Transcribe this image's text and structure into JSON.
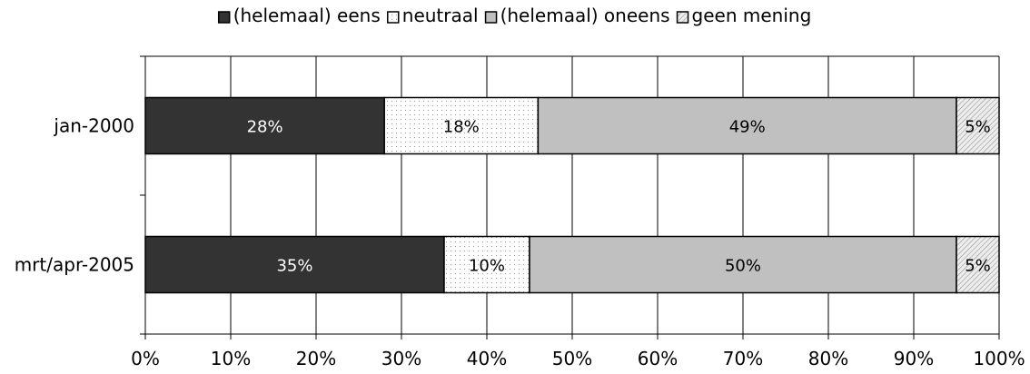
{
  "chart_data": {
    "type": "bar",
    "orientation": "horizontal",
    "stacked": "percent",
    "categories": [
      "jan-2000",
      "mrt/apr-2005"
    ],
    "series": [
      {
        "name": "(helemaal) eens",
        "values": [
          28,
          35
        ],
        "color": "#333333",
        "pattern": "solid"
      },
      {
        "name": "neutraal",
        "values": [
          18,
          10
        ],
        "color": "#ffffff",
        "pattern": "dotted"
      },
      {
        "name": "(helemaal) oneens",
        "values": [
          49,
          50
        ],
        "color": "#c0c0c0",
        "pattern": "solid"
      },
      {
        "name": "geen mening",
        "values": [
          5,
          5
        ],
        "color": "#e6e6e6",
        "pattern": "hatched"
      }
    ],
    "value_labels": [
      [
        "28%",
        "18%",
        "49%",
        "5%"
      ],
      [
        "35%",
        "10%",
        "50%",
        "5%"
      ]
    ],
    "xlim": [
      0,
      100
    ],
    "x_ticks": [
      0,
      10,
      20,
      30,
      40,
      50,
      60,
      70,
      80,
      90,
      100
    ],
    "x_tick_labels": [
      "0%",
      "10%",
      "20%",
      "30%",
      "40%",
      "50%",
      "60%",
      "70%",
      "80%",
      "90%",
      "100%"
    ],
    "grid": "vertical",
    "legend_position": "top",
    "title": "",
    "xlabel": "",
    "ylabel": ""
  }
}
